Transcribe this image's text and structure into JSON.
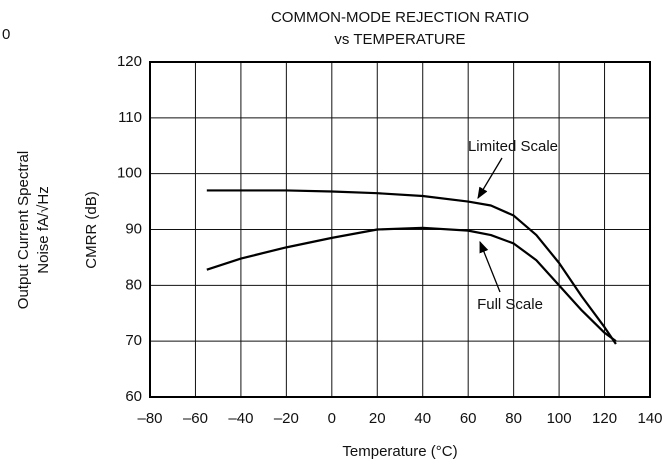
{
  "left_fragment": {
    "tick": "0",
    "label_line1": "Output Current Spectral",
    "label_line2": "Noise fA/√Hz"
  },
  "chart_data": {
    "type": "line",
    "title": [
      "COMMON-MODE REJECTION RATIO",
      "vs TEMPERATURE"
    ],
    "x_label": "Temperature (°C)",
    "y_label": "CMRR (dB)",
    "x": [
      -55,
      -40,
      -20,
      0,
      20,
      40,
      60,
      70,
      80,
      90,
      100,
      110,
      120,
      125
    ],
    "series": [
      {
        "name": "Limited Scale",
        "color": "#000000",
        "values": [
          97,
          97,
          97,
          96.8,
          96.5,
          96,
          95,
          94.3,
          92.5,
          89,
          84,
          78,
          72.5,
          69.5
        ]
      },
      {
        "name": "Full Scale",
        "color": "#000000",
        "values": [
          82.8,
          84.8,
          86.8,
          88.5,
          90,
          90.3,
          89.8,
          89,
          87.5,
          84.5,
          80,
          75.5,
          71.5,
          70
        ]
      }
    ],
    "xlim": [
      -80,
      140
    ],
    "xticks": [
      {
        "value": -80,
        "label": "–80"
      },
      {
        "value": -60,
        "label": "–60"
      },
      {
        "value": -40,
        "label": "–40"
      },
      {
        "value": -20,
        "label": "–20"
      },
      0,
      20,
      40,
      60,
      80,
      100,
      120,
      140
    ],
    "ylim": [
      60,
      120
    ],
    "yticks": [
      60,
      70,
      80,
      90,
      100,
      110,
      120
    ],
    "grid": true
  }
}
